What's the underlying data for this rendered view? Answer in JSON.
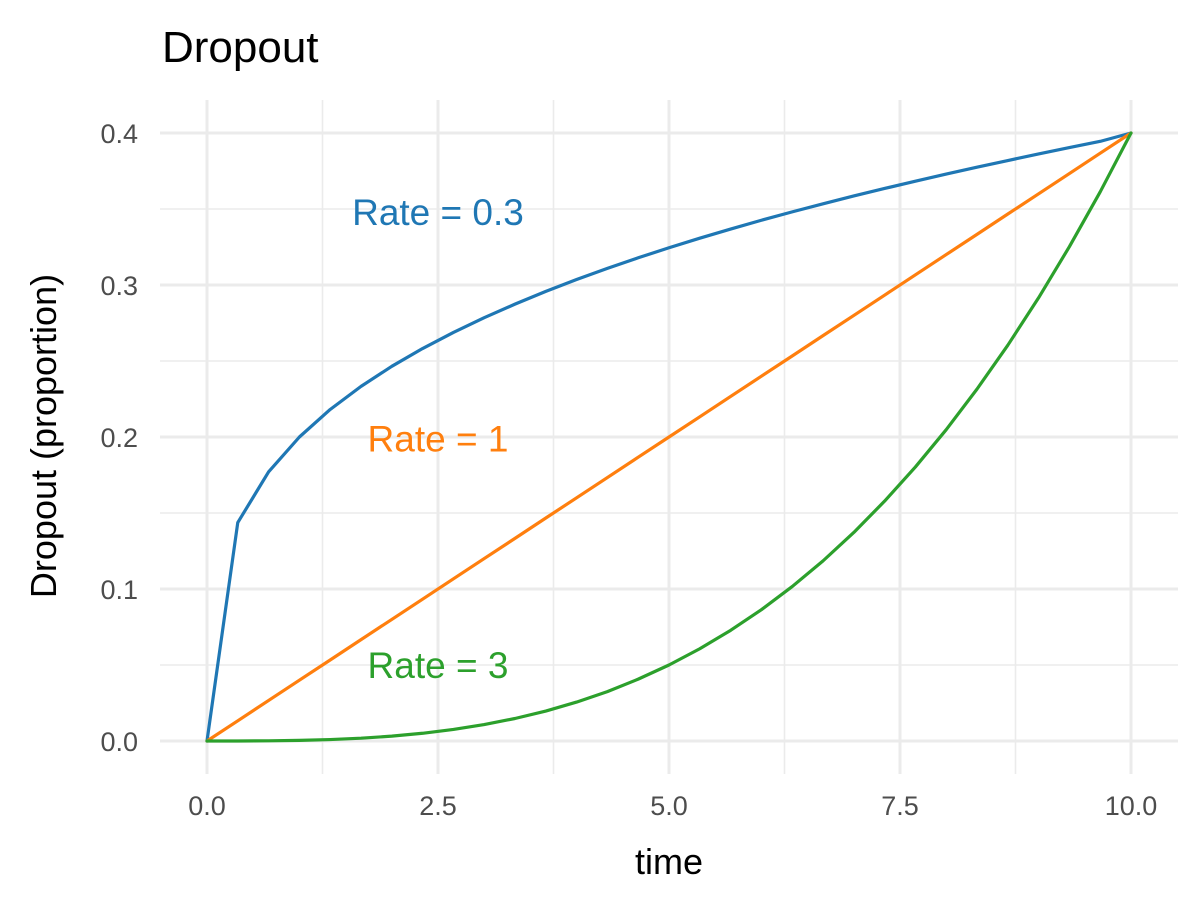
{
  "chart_data": {
    "type": "line",
    "title": "Dropout",
    "xlabel": "time",
    "ylabel": "Dropout (proportion)",
    "xlim": [
      0,
      10
    ],
    "ylim": [
      0,
      0.4
    ],
    "x_ticks": [
      0,
      2.5,
      5,
      7.5,
      10
    ],
    "x_tick_labels": [
      "0.0",
      "2.5",
      "5.0",
      "7.5",
      "10.0"
    ],
    "y_ticks": [
      0,
      0.1,
      0.2,
      0.3,
      0.4
    ],
    "y_tick_labels": [
      "0.0",
      "0.1",
      "0.2",
      "0.3",
      "0.4"
    ],
    "grid": true,
    "legend": "none",
    "x": [
      0,
      0.333,
      0.667,
      1,
      1.333,
      1.667,
      2,
      2.333,
      2.667,
      3,
      3.333,
      3.667,
      4,
      4.333,
      4.667,
      5,
      5.333,
      5.667,
      6,
      6.333,
      6.667,
      7,
      7.333,
      7.667,
      8,
      8.333,
      8.667,
      9,
      9.333,
      9.667,
      10
    ],
    "series": [
      {
        "name": "Rate = 0.3",
        "color": "#1f77b4",
        "values": [
          0,
          0.1437,
          0.1771,
          0.2,
          0.2181,
          0.2333,
          0.2465,
          0.2582,
          0.2688,
          0.2785,
          0.2874,
          0.2958,
          0.3036,
          0.3109,
          0.3179,
          0.3245,
          0.3308,
          0.3368,
          0.3426,
          0.3481,
          0.3534,
          0.3586,
          0.3635,
          0.3683,
          0.373,
          0.3775,
          0.3819,
          0.3862,
          0.3904,
          0.3945,
          0.4
        ]
      },
      {
        "name": "Rate = 1",
        "color": "#ff7f0e",
        "values": [
          0,
          0.0133,
          0.0267,
          0.04,
          0.0533,
          0.0667,
          0.08,
          0.0933,
          0.1067,
          0.12,
          0.1333,
          0.1467,
          0.16,
          0.1733,
          0.1867,
          0.2,
          0.2133,
          0.2267,
          0.24,
          0.2533,
          0.2667,
          0.28,
          0.2933,
          0.3067,
          0.32,
          0.3333,
          0.3467,
          0.36,
          0.3733,
          0.3867,
          0.4
        ]
      },
      {
        "name": "Rate = 3",
        "color": "#2ca02c",
        "values": [
          0,
          1.48e-05,
          0.000119,
          0.0004,
          0.00095,
          0.00185,
          0.0032,
          0.00508,
          0.00759,
          0.0108,
          0.0148,
          0.0197,
          0.0256,
          0.0325,
          0.0407,
          0.05,
          0.0607,
          0.0728,
          0.0864,
          0.1016,
          0.1185,
          0.1372,
          0.1578,
          0.1803,
          0.2048,
          0.2315,
          0.2604,
          0.2916,
          0.3252,
          0.3613,
          0.4
        ]
      }
    ],
    "annotations": [
      {
        "text": "Rate = 0.3",
        "x": 2.5,
        "y": 0.348,
        "color": "#1f77b4"
      },
      {
        "text": "Rate = 1",
        "x": 2.5,
        "y": 0.199,
        "color": "#ff7f0e"
      },
      {
        "text": "Rate = 3",
        "x": 2.5,
        "y": 0.05,
        "color": "#2ca02c"
      }
    ]
  }
}
